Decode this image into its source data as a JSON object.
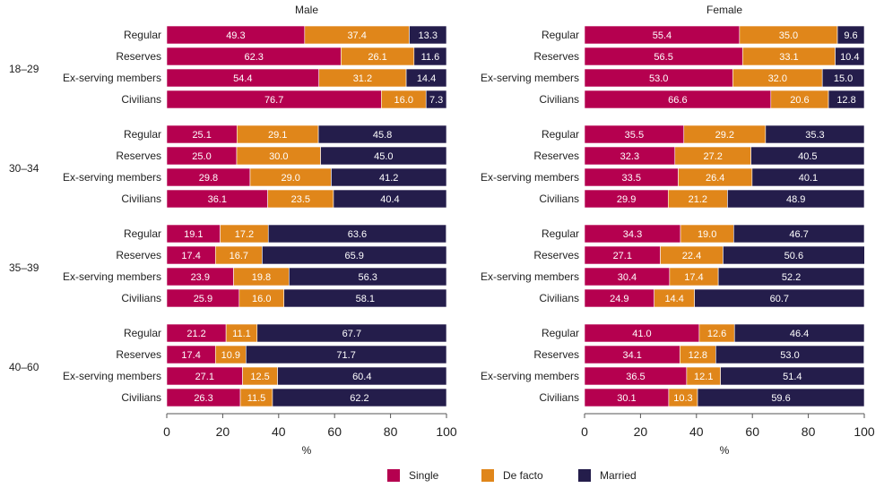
{
  "chart_data": [
    {
      "type": "bar",
      "orientation": "horizontal",
      "stacked": true,
      "title": "Male",
      "xlabel": "%",
      "xlim": [
        0,
        100
      ],
      "xticks": [
        "0",
        "20",
        "40",
        "60",
        "80",
        "100"
      ],
      "groups": [
        {
          "label": "18–29",
          "rows": [
            {
              "category": "Regular",
              "values": [
                49.3,
                37.4,
                13.3
              ]
            },
            {
              "category": "Reserves",
              "values": [
                62.3,
                26.1,
                11.6
              ]
            },
            {
              "category": "Ex-serving members",
              "values": [
                54.4,
                31.2,
                14.4
              ]
            },
            {
              "category": "Civilians",
              "values": [
                76.7,
                16.0,
                7.3
              ]
            }
          ]
        },
        {
          "label": "30–34",
          "rows": [
            {
              "category": "Regular",
              "values": [
                25.1,
                29.1,
                45.8
              ]
            },
            {
              "category": "Reserves",
              "values": [
                25.0,
                30.0,
                45.0
              ]
            },
            {
              "category": "Ex-serving members",
              "values": [
                29.8,
                29.0,
                41.2
              ]
            },
            {
              "category": "Civilians",
              "values": [
                36.1,
                23.5,
                40.4
              ]
            }
          ]
        },
        {
          "label": "35–39",
          "rows": [
            {
              "category": "Regular",
              "values": [
                19.1,
                17.2,
                63.6
              ]
            },
            {
              "category": "Reserves",
              "values": [
                17.4,
                16.7,
                65.9
              ]
            },
            {
              "category": "Ex-serving members",
              "values": [
                23.9,
                19.8,
                56.3
              ]
            },
            {
              "category": "Civilians",
              "values": [
                25.9,
                16.0,
                58.1
              ]
            }
          ]
        },
        {
          "label": "40–60",
          "rows": [
            {
              "category": "Regular",
              "values": [
                21.2,
                11.1,
                67.7
              ]
            },
            {
              "category": "Reserves",
              "values": [
                17.4,
                10.9,
                71.7
              ]
            },
            {
              "category": "Ex-serving members",
              "values": [
                27.1,
                12.5,
                60.4
              ]
            },
            {
              "category": "Civilians",
              "values": [
                26.3,
                11.5,
                62.2
              ]
            }
          ]
        }
      ]
    },
    {
      "type": "bar",
      "orientation": "horizontal",
      "stacked": true,
      "title": "Female",
      "xlabel": "%",
      "xlim": [
        0,
        100
      ],
      "xticks": [
        "0",
        "20",
        "40",
        "60",
        "80",
        "100"
      ],
      "groups": [
        {
          "label": "",
          "rows": [
            {
              "category": "Regular",
              "values": [
                55.4,
                35.0,
                9.6
              ]
            },
            {
              "category": "Reserves",
              "values": [
                56.5,
                33.1,
                10.4
              ]
            },
            {
              "category": "Ex-serving members",
              "values": [
                53.0,
                32.0,
                15.0
              ]
            },
            {
              "category": "Civilians",
              "values": [
                66.6,
                20.6,
                12.8
              ]
            }
          ]
        },
        {
          "label": "",
          "rows": [
            {
              "category": "Regular",
              "values": [
                35.5,
                29.2,
                35.3
              ]
            },
            {
              "category": "Reserves",
              "values": [
                32.3,
                27.2,
                40.5
              ]
            },
            {
              "category": "Ex-serving members",
              "values": [
                33.5,
                26.4,
                40.1
              ]
            },
            {
              "category": "Civilians",
              "values": [
                29.9,
                21.2,
                48.9
              ]
            }
          ]
        },
        {
          "label": "",
          "rows": [
            {
              "category": "Regular",
              "values": [
                34.3,
                19.0,
                46.7
              ]
            },
            {
              "category": "Reserves",
              "values": [
                27.1,
                22.4,
                50.6
              ]
            },
            {
              "category": "Ex-serving members",
              "values": [
                30.4,
                17.4,
                52.2
              ]
            },
            {
              "category": "Civilians",
              "values": [
                24.9,
                14.4,
                60.7
              ]
            }
          ]
        },
        {
          "label": "",
          "rows": [
            {
              "category": "Regular",
              "values": [
                41.0,
                12.6,
                46.4
              ]
            },
            {
              "category": "Reserves",
              "values": [
                34.1,
                12.8,
                53.0
              ]
            },
            {
              "category": "Ex-serving members",
              "values": [
                36.5,
                12.1,
                51.4
              ]
            },
            {
              "category": "Civilians",
              "values": [
                30.1,
                10.3,
                59.6
              ]
            }
          ]
        }
      ]
    }
  ],
  "legend": [
    {
      "name": "Single",
      "color": "#b5004f"
    },
    {
      "name": "De facto",
      "color": "#e0861a"
    },
    {
      "name": "Married",
      "color": "#241d4b"
    }
  ]
}
